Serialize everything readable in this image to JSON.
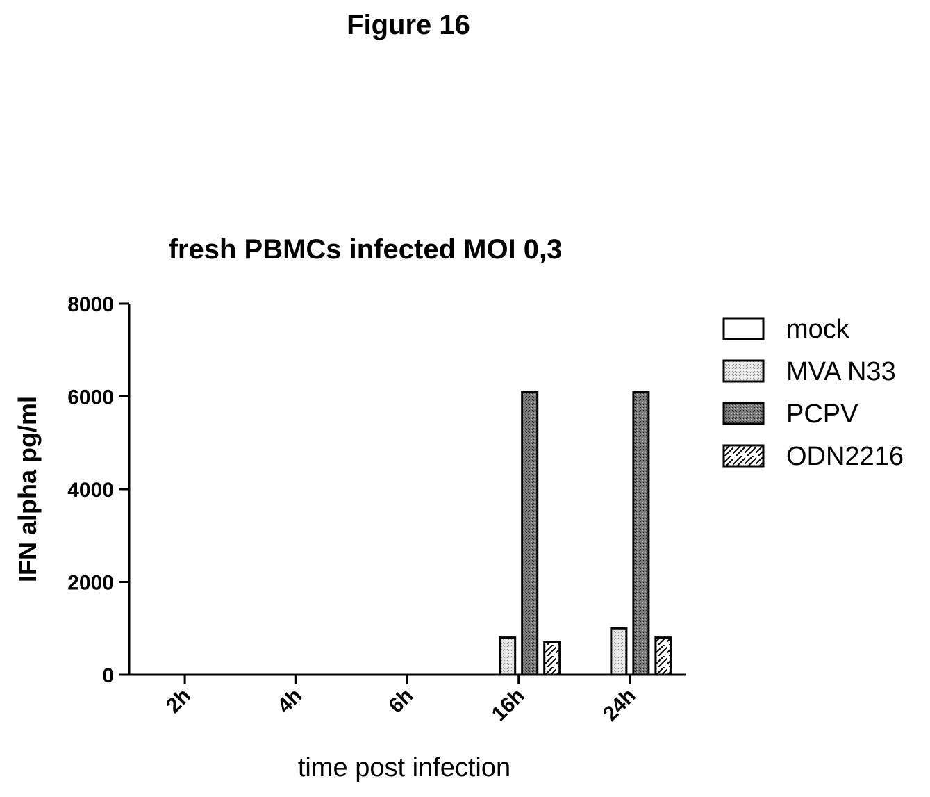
{
  "figure_label": "Figure 16",
  "chart_data": {
    "type": "bar",
    "title": "fresh PBMCs infected MOI 0,3",
    "xlabel": "time post infection",
    "ylabel": "IFN alpha pg/ml",
    "categories": [
      "2h",
      "4h",
      "6h",
      "16h",
      "24h"
    ],
    "yticks": [
      "0",
      "2000",
      "4000",
      "6000",
      "8000"
    ],
    "ylim": [
      0,
      8000
    ],
    "grid": false,
    "legend_position": "right",
    "series": [
      {
        "name": "mock",
        "values": [
          0,
          0,
          0,
          0,
          0
        ],
        "fill": "#ffffff",
        "pattern": "none"
      },
      {
        "name": "MVA N33",
        "values": [
          0,
          0,
          0,
          800,
          1000
        ],
        "fill": "#dcdcdc",
        "pattern": "stipple-light"
      },
      {
        "name": "PCPV",
        "values": [
          0,
          0,
          0,
          6100,
          6100
        ],
        "fill": "#6f6f6f",
        "pattern": "stipple-dark"
      },
      {
        "name": "ODN2216",
        "values": [
          0,
          0,
          0,
          700,
          800
        ],
        "fill": "#ffffff",
        "pattern": "hatch"
      }
    ]
  }
}
